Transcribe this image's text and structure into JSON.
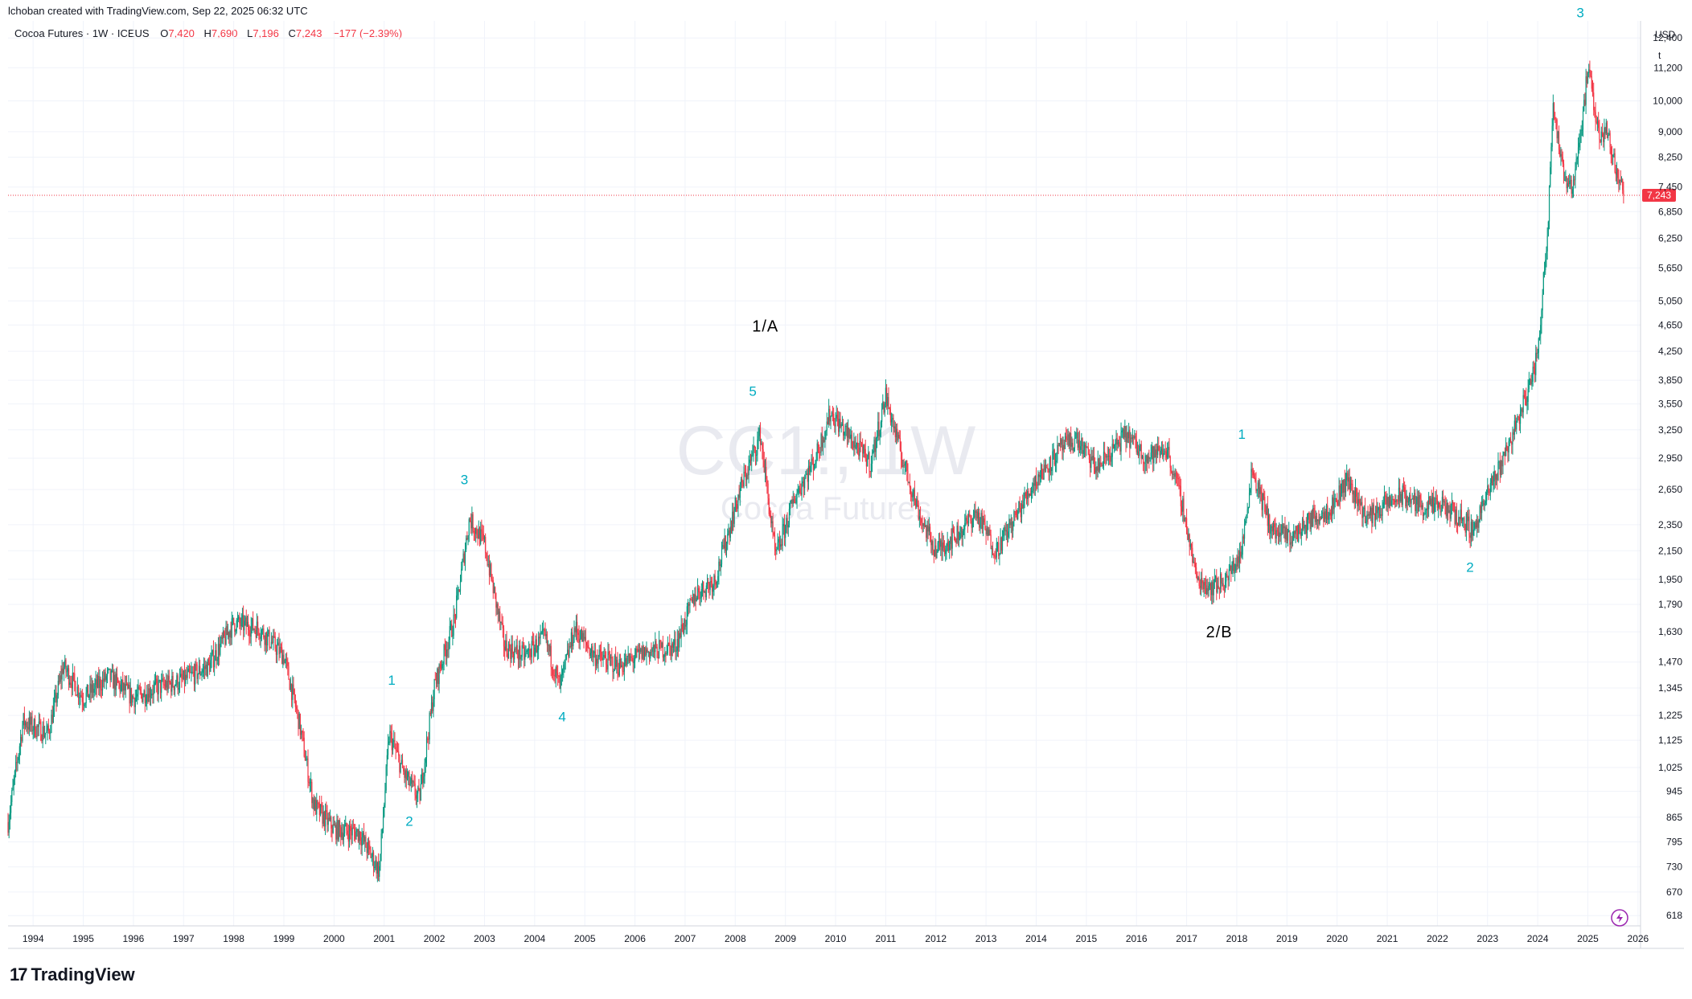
{
  "header": {
    "credit": "lchoban created with TradingView.com, Sep 22, 2025 06:32 UTC"
  },
  "legend": {
    "symbol": "Cocoa Futures · 1W · ICEUS",
    "open_label": "O",
    "open": "7,420",
    "high_label": "H",
    "high": "7,690",
    "low_label": "L",
    "low": "7,196",
    "close_label": "C",
    "close": "7,243",
    "change": "−177 (−2.39%)"
  },
  "watermark": {
    "line1": "CC1!, 1W",
    "line2": "Cocoa Futures"
  },
  "axis": {
    "currency": "USD",
    "unit": "t",
    "last_price": "7,243"
  },
  "brand": {
    "logo_text": "17",
    "name": "TradingView"
  },
  "colors": {
    "up": "#089981",
    "down": "#f23645",
    "wave_cyan": "#00acc1",
    "grid": "#f0f3fa",
    "price_line": "#f23645"
  },
  "chart_data": {
    "type": "candlestick",
    "scale": "log",
    "ylim": [
      600,
      13000
    ],
    "xlim": [
      1993.5,
      2026.05
    ],
    "y_ticks": [
      "618",
      "670",
      "730",
      "795",
      "865",
      "945",
      "1,025",
      "1,125",
      "1,225",
      "1,345",
      "1,470",
      "1,630",
      "1,790",
      "1,950",
      "2,150",
      "2,350",
      "2,650",
      "2,950",
      "3,250",
      "3,550",
      "3,850",
      "4,250",
      "4,650",
      "5,050",
      "5,650",
      "6,250",
      "6,850",
      "7,450",
      "8,250",
      "9,000",
      "10,000",
      "11,200",
      "12,400"
    ],
    "x_ticks": [
      "1994",
      "1995",
      "1996",
      "1997",
      "1998",
      "1999",
      "2000",
      "2001",
      "2002",
      "2003",
      "2004",
      "2005",
      "2006",
      "2007",
      "2008",
      "2009",
      "2010",
      "2011",
      "2012",
      "2013",
      "2014",
      "2015",
      "2016",
      "2017",
      "2018",
      "2019",
      "2020",
      "2021",
      "2022",
      "2023",
      "2024",
      "2025",
      "2026"
    ],
    "price_path": [
      [
        1993.5,
        850
      ],
      [
        1993.8,
        1200
      ],
      [
        1994.3,
        1150
      ],
      [
        1994.6,
        1450
      ],
      [
        1995.0,
        1300
      ],
      [
        1995.5,
        1400
      ],
      [
        1996.0,
        1300
      ],
      [
        1996.5,
        1350
      ],
      [
        1997.0,
        1380
      ],
      [
        1997.5,
        1450
      ],
      [
        1998.0,
        1680
      ],
      [
        1998.5,
        1650
      ],
      [
        1999.0,
        1500
      ],
      [
        1999.3,
        1200
      ],
      [
        1999.6,
        900
      ],
      [
        2000.0,
        830
      ],
      [
        2000.5,
        820
      ],
      [
        2000.9,
        720
      ],
      [
        2001.1,
        1150
      ],
      [
        2001.4,
        1000
      ],
      [
        2001.7,
        920
      ],
      [
        2002.0,
        1350
      ],
      [
        2002.4,
        1700
      ],
      [
        2002.7,
        2400
      ],
      [
        2003.0,
        2200
      ],
      [
        2003.4,
        1550
      ],
      [
        2003.8,
        1500
      ],
      [
        2004.2,
        1600
      ],
      [
        2004.5,
        1350
      ],
      [
        2004.8,
        1650
      ],
      [
        2005.2,
        1500
      ],
      [
        2005.7,
        1450
      ],
      [
        2006.2,
        1520
      ],
      [
        2006.8,
        1550
      ],
      [
        2007.2,
        1850
      ],
      [
        2007.6,
        1950
      ],
      [
        2008.1,
        2650
      ],
      [
        2008.5,
        3200
      ],
      [
        2008.8,
        2100
      ],
      [
        2009.2,
        2600
      ],
      [
        2009.6,
        2950
      ],
      [
        2009.9,
        3450
      ],
      [
        2010.3,
        3150
      ],
      [
        2010.7,
        2900
      ],
      [
        2011.0,
        3650
      ],
      [
        2011.3,
        3000
      ],
      [
        2011.7,
        2400
      ],
      [
        2012.0,
        2150
      ],
      [
        2012.5,
        2300
      ],
      [
        2012.8,
        2450
      ],
      [
        2013.2,
        2150
      ],
      [
        2013.7,
        2500
      ],
      [
        2014.0,
        2750
      ],
      [
        2014.5,
        3050
      ],
      [
        2014.8,
        3150
      ],
      [
        2015.2,
        2850
      ],
      [
        2015.8,
        3200
      ],
      [
        2016.2,
        2950
      ],
      [
        2016.6,
        3050
      ],
      [
        2016.9,
        2550
      ],
      [
        2017.2,
        1950
      ],
      [
        2017.5,
        1900
      ],
      [
        2017.8,
        1950
      ],
      [
        2018.1,
        2150
      ],
      [
        2018.3,
        2850
      ],
      [
        2018.7,
        2300
      ],
      [
        2019.1,
        2250
      ],
      [
        2019.5,
        2400
      ],
      [
        2019.9,
        2500
      ],
      [
        2020.2,
        2750
      ],
      [
        2020.6,
        2400
      ],
      [
        2020.9,
        2500
      ],
      [
        2021.3,
        2600
      ],
      [
        2021.7,
        2500
      ],
      [
        2022.1,
        2500
      ],
      [
        2022.5,
        2400
      ],
      [
        2022.7,
        2300
      ],
      [
        2023.0,
        2600
      ],
      [
        2023.5,
        3200
      ],
      [
        2023.8,
        3700
      ],
      [
        2024.0,
        4200
      ],
      [
        2024.2,
        6500
      ],
      [
        2024.3,
        10000
      ],
      [
        2024.5,
        7800
      ],
      [
        2024.7,
        7500
      ],
      [
        2024.9,
        9500
      ],
      [
        2025.0,
        11200
      ],
      [
        2025.2,
        9000
      ],
      [
        2025.4,
        9000
      ],
      [
        2025.55,
        8000
      ],
      [
        2025.72,
        7243
      ]
    ],
    "annotations": [
      {
        "text": "1/A",
        "x": 2008.6,
        "y": 4550,
        "color": "black"
      },
      {
        "text": "5",
        "x": 2008.35,
        "y": 3650,
        "color": "cyan"
      },
      {
        "text": "3",
        "x": 2002.6,
        "y": 2700,
        "color": "cyan"
      },
      {
        "text": "1",
        "x": 2001.15,
        "y": 1360,
        "color": "cyan"
      },
      {
        "text": "2",
        "x": 2001.5,
        "y": 840,
        "color": "cyan"
      },
      {
        "text": "4",
        "x": 2004.55,
        "y": 1200,
        "color": "cyan"
      },
      {
        "text": "1",
        "x": 2018.1,
        "y": 3150,
        "color": "cyan"
      },
      {
        "text": "2/B",
        "x": 2017.65,
        "y": 1600,
        "color": "black"
      },
      {
        "text": "2",
        "x": 2022.65,
        "y": 2000,
        "color": "cyan"
      },
      {
        "text": "3",
        "x": 2024.85,
        "y": 13300,
        "color": "cyan"
      }
    ]
  }
}
